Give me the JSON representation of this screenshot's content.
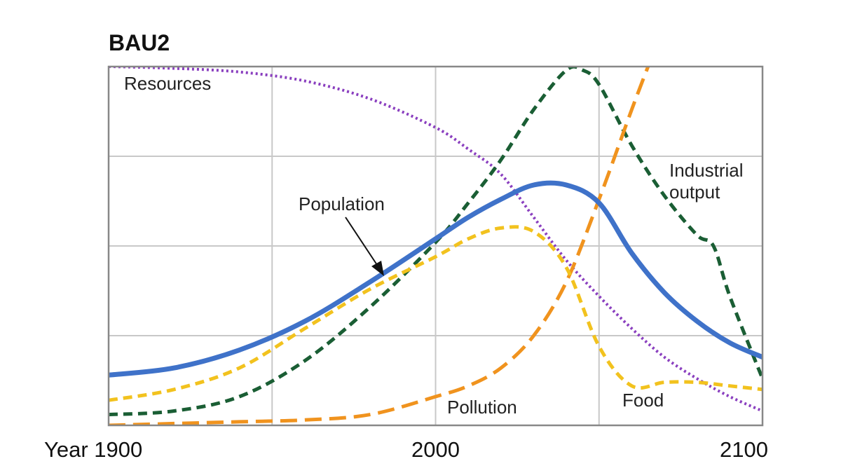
{
  "chart_data": {
    "type": "line",
    "title": "BAU2",
    "x_prefix": "Year",
    "xlim": [
      1900,
      2100
    ],
    "ylim": [
      0,
      1
    ],
    "x_ticks": [
      1900,
      2000,
      2100
    ],
    "gridlines_x": [
      1900,
      1950,
      2000,
      2050,
      2100
    ],
    "gridlines_y": [
      0.25,
      0.5,
      0.75,
      1.0
    ],
    "grid": true,
    "axis_label_style": "unlabeled y-axis (relative scale)",
    "colors": {
      "resources": "#8a3fbf",
      "industrial_output": "#1a5e34",
      "pollution": "#f0931e",
      "population": "#3f72c9",
      "food": "#f2c21e",
      "grid": "#c8c8c8",
      "frame": "#888888"
    },
    "series": [
      {
        "key": "resources",
        "name": "Resources",
        "style": "dotted",
        "x": [
          1900,
          1920,
          1940,
          1960,
          1980,
          2000,
          2010,
          2020,
          2030,
          2040,
          2050,
          2060,
          2070,
          2080,
          2090,
          2100
        ],
        "values": [
          1.0,
          0.995,
          0.985,
          0.96,
          0.91,
          0.83,
          0.77,
          0.7,
          0.58,
          0.46,
          0.36,
          0.27,
          0.19,
          0.13,
          0.08,
          0.04
        ]
      },
      {
        "key": "industrial_output",
        "name": "Industrial output",
        "style": "dashed",
        "x": [
          1900,
          1920,
          1940,
          1960,
          1980,
          2000,
          2010,
          2020,
          2030,
          2040,
          2045,
          2050,
          2060,
          2070,
          2080,
          2085,
          2090,
          2100
        ],
        "values": [
          0.03,
          0.04,
          0.08,
          0.18,
          0.33,
          0.51,
          0.62,
          0.74,
          0.88,
          0.99,
          0.99,
          0.95,
          0.78,
          0.64,
          0.53,
          0.5,
          0.36,
          0.13
        ]
      },
      {
        "key": "pollution",
        "name": "Pollution",
        "style": "long-dashed",
        "x": [
          1900,
          1920,
          1940,
          1960,
          1980,
          2000,
          2010,
          2020,
          2030,
          2040,
          2050,
          2060,
          2065
        ],
        "values": [
          0.0,
          0.005,
          0.01,
          0.015,
          0.03,
          0.08,
          0.11,
          0.16,
          0.25,
          0.4,
          0.63,
          0.88,
          1.0
        ]
      },
      {
        "key": "population",
        "name": "Population",
        "style": "solid",
        "x": [
          1900,
          1920,
          1940,
          1960,
          1980,
          2000,
          2010,
          2020,
          2030,
          2040,
          2050,
          2060,
          2070,
          2080,
          2090,
          2100
        ],
        "values": [
          0.14,
          0.16,
          0.21,
          0.29,
          0.4,
          0.52,
          0.58,
          0.63,
          0.67,
          0.67,
          0.62,
          0.48,
          0.37,
          0.29,
          0.23,
          0.19
        ]
      },
      {
        "key": "food",
        "name": "Food",
        "style": "dashed",
        "x": [
          1900,
          1920,
          1940,
          1960,
          1980,
          2000,
          2010,
          2020,
          2030,
          2040,
          2050,
          2060,
          2070,
          2080,
          2090,
          2100
        ],
        "values": [
          0.07,
          0.1,
          0.16,
          0.27,
          0.38,
          0.47,
          0.52,
          0.55,
          0.54,
          0.44,
          0.22,
          0.11,
          0.12,
          0.12,
          0.11,
          0.1
        ]
      }
    ],
    "annotations": [
      {
        "key": "resources",
        "text": "Resources"
      },
      {
        "key": "industrial_output",
        "text": "Industrial\noutput"
      },
      {
        "key": "population",
        "text": "Population",
        "arrow": true
      },
      {
        "key": "pollution",
        "text": "Pollution"
      },
      {
        "key": "food",
        "text": "Food"
      }
    ]
  }
}
